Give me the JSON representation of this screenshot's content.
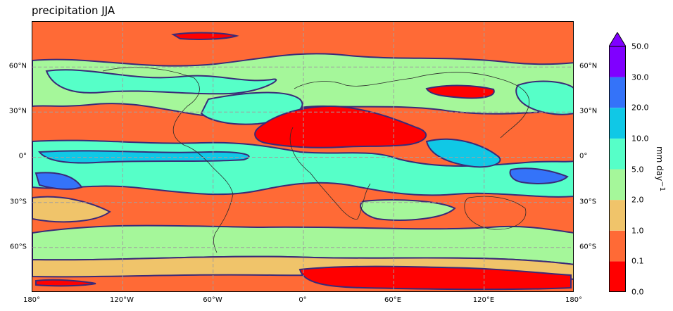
{
  "title": "precipitation JJA",
  "lon_ticks": [
    "180°",
    "120°W",
    "60°W",
    "0°",
    "60°E",
    "120°E",
    "180°"
  ],
  "lat_ticks": [
    "60°N",
    "30°N",
    "0°",
    "30°S",
    "60°S"
  ],
  "colorbar": {
    "label": "mm day",
    "label_exponent": "−1",
    "ticks": [
      "0.0",
      "0.1",
      "1.0",
      "2.0",
      "5.0",
      "10.0",
      "20.0",
      "30.0",
      "50.0"
    ],
    "levels": [
      0.0,
      0.1,
      1.0,
      2.0,
      5.0,
      10.0,
      20.0,
      30.0,
      50.0
    ],
    "colors": [
      "#ff0000",
      "#ff6a36",
      "#f0c46a",
      "#a5f79a",
      "#56ffc8",
      "#10c8e6",
      "#3473f9",
      "#8000ff"
    ],
    "extend": "max"
  },
  "colors": {
    "contour_line": "#3a2a78",
    "coastline": "#2a2a2a",
    "grid": "#a0a0a0"
  },
  "map": {
    "projection": "PlateCarree",
    "extent_lon": [
      -180,
      180
    ],
    "extent_lat": [
      -90,
      90
    ],
    "gridlines": "dashed"
  }
}
